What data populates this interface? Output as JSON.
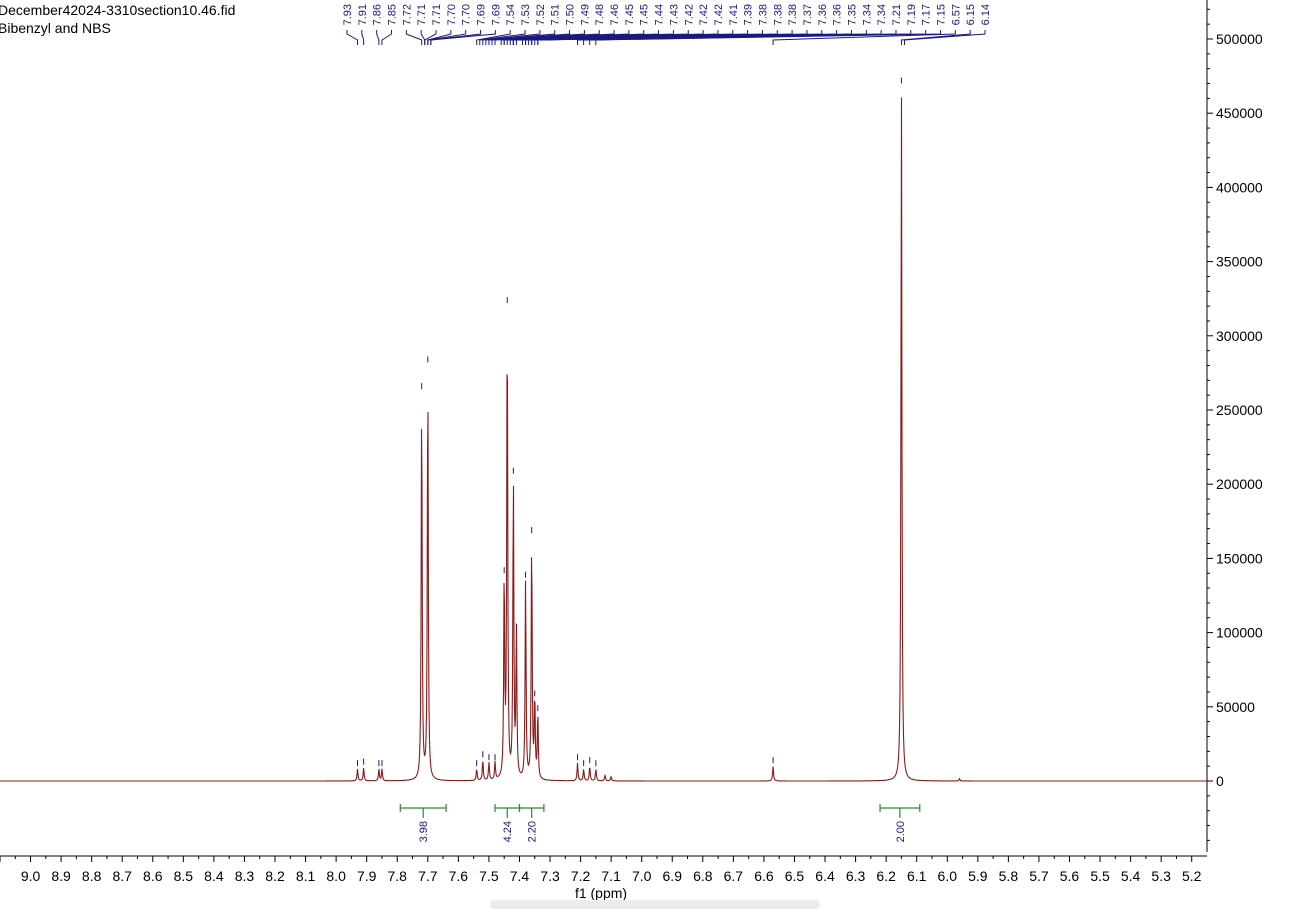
{
  "header": {
    "filename": "December42024-3310section10.46.fid",
    "sample": "Bibenzyl and NBS"
  },
  "colors": {
    "spectrum": "#8b1a1a",
    "peak_labels": "#1a1a80",
    "integrals": "#2e8b2e",
    "axis": "#000000"
  },
  "chart_data": {
    "type": "line",
    "title": "",
    "xlabel": "f1 (ppm)",
    "ylabel": "",
    "xlim": [
      9.1,
      5.15
    ],
    "ylim": [
      -50000,
      520000
    ],
    "x_reversed": true,
    "x_ticks": [
      "9.0",
      "8.9",
      "8.8",
      "8.7",
      "8.6",
      "8.5",
      "8.4",
      "8.3",
      "8.2",
      "8.1",
      "8.0",
      "7.9",
      "7.8",
      "7.7",
      "7.6",
      "7.5",
      "7.4",
      "7.3",
      "7.2",
      "7.1",
      "7.0",
      "6.9",
      "6.8",
      "6.7",
      "6.6",
      "6.5",
      "6.4",
      "6.3",
      "6.2",
      "6.1",
      "6.0",
      "5.9",
      "5.8",
      "5.7",
      "5.6",
      "5.5",
      "5.4",
      "5.3",
      "5.2"
    ],
    "y_ticks": [
      "0",
      "50000",
      "100000",
      "150000",
      "200000",
      "250000",
      "300000",
      "350000",
      "400000",
      "450000",
      "500000"
    ],
    "peak_labels": [
      "7.93",
      "7.91",
      "7.86",
      "7.85",
      "7.72",
      "7.71",
      "7.71",
      "7.70",
      "7.70",
      "7.69",
      "7.69",
      "7.54",
      "7.53",
      "7.52",
      "7.51",
      "7.50",
      "7.49",
      "7.48",
      "7.46",
      "7.45",
      "7.45",
      "7.44",
      "7.43",
      "7.42",
      "7.42",
      "7.42",
      "7.41",
      "7.39",
      "7.38",
      "7.38",
      "7.38",
      "7.37",
      "7.36",
      "7.36",
      "7.35",
      "7.34",
      "7.34",
      "7.21",
      "7.19",
      "7.17",
      "7.15",
      "6.57",
      "6.15",
      "6.14"
    ],
    "peaks": [
      {
        "x": 7.93,
        "height": 8000
      },
      {
        "x": 7.91,
        "height": 9000
      },
      {
        "x": 7.86,
        "height": 8000
      },
      {
        "x": 7.85,
        "height": 8000
      },
      {
        "x": 7.72,
        "height": 262000
      },
      {
        "x": 7.7,
        "height": 280000
      },
      {
        "x": 7.54,
        "height": 8000
      },
      {
        "x": 7.52,
        "height": 14000
      },
      {
        "x": 7.5,
        "height": 12000
      },
      {
        "x": 7.48,
        "height": 12000
      },
      {
        "x": 7.45,
        "height": 138000
      },
      {
        "x": 7.44,
        "height": 320000
      },
      {
        "x": 7.42,
        "height": 205000
      },
      {
        "x": 7.41,
        "height": 100000
      },
      {
        "x": 7.38,
        "height": 135000
      },
      {
        "x": 7.36,
        "height": 165000
      },
      {
        "x": 7.35,
        "height": 55000
      },
      {
        "x": 7.34,
        "height": 45000
      },
      {
        "x": 7.21,
        "height": 12000
      },
      {
        "x": 7.19,
        "height": 8000
      },
      {
        "x": 7.17,
        "height": 10000
      },
      {
        "x": 7.15,
        "height": 8000
      },
      {
        "x": 7.12,
        "height": 4000
      },
      {
        "x": 7.1,
        "height": 3000
      },
      {
        "x": 6.57,
        "height": 10000
      },
      {
        "x": 6.15,
        "height": 468000
      },
      {
        "x": 5.96,
        "height": 1500
      }
    ],
    "integrals": [
      {
        "from": 7.79,
        "to": 7.64,
        "value": "3.98"
      },
      {
        "from": 7.48,
        "to": 7.4,
        "value": "4.24"
      },
      {
        "from": 7.4,
        "to": 7.32,
        "value": "2.20"
      },
      {
        "from": 6.22,
        "to": 6.09,
        "value": "2.00"
      }
    ]
  }
}
